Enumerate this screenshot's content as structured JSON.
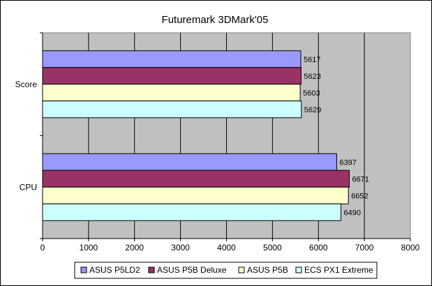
{
  "chart_data": {
    "type": "bar",
    "orientation": "horizontal",
    "title": "Futuremark 3DMark'05",
    "categories": [
      "Score",
      "CPU"
    ],
    "series": [
      {
        "name": "ASUS P5LD2",
        "color": "#9999ff",
        "values": [
          5617,
          6397
        ]
      },
      {
        "name": "ASUS P5B Deluxe",
        "color": "#993366",
        "values": [
          5623,
          6671
        ]
      },
      {
        "name": "ASUS P5B",
        "color": "#ffffcc",
        "values": [
          5603,
          6652
        ]
      },
      {
        "name": "ECS PX1 Extreme",
        "color": "#ccffff",
        "values": [
          5629,
          6490
        ]
      }
    ],
    "xlim": [
      0,
      8000
    ],
    "xticks": [
      "0",
      "1000",
      "2000",
      "3000",
      "4000",
      "5000",
      "6000",
      "7000",
      "8000"
    ],
    "grid": true,
    "plot_background": "#c0c0c0",
    "data_labels": true,
    "legend_position": "bottom"
  }
}
